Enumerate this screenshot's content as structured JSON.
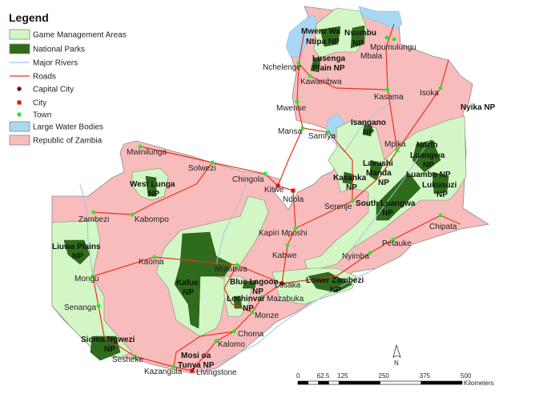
{
  "legend": {
    "title": "Legend",
    "items": [
      {
        "label": "Game Management Areas",
        "symbol": "fill",
        "color": "#d2f7c4"
      },
      {
        "label": "National Parks",
        "symbol": "fill",
        "color": "#2e6b1a"
      },
      {
        "label": "Major Rivers",
        "symbol": "line",
        "color": "#9fc3e6"
      },
      {
        "label": "Roads",
        "symbol": "line",
        "color": "#e8341c"
      },
      {
        "label": "Capital City",
        "symbol": "circle",
        "color": "#6b0f0f"
      },
      {
        "label": "City",
        "symbol": "square",
        "color": "#e01010"
      },
      {
        "label": "Town",
        "symbol": "circle",
        "color": "#2ee62e"
      },
      {
        "label": "Large Water Bodies",
        "symbol": "fill",
        "color": "#a8d8f5"
      },
      {
        "label": "Republic of Zambia",
        "symbol": "fill",
        "color": "#f9bcbc"
      }
    ]
  },
  "places": [
    {
      "name": "Mpumulungu",
      "type": "town"
    },
    {
      "name": "Mbala",
      "type": "town"
    },
    {
      "name": "Nchelenge",
      "type": "town"
    },
    {
      "name": "Kawambwa",
      "type": "town"
    },
    {
      "name": "Kasama",
      "type": "town"
    },
    {
      "name": "Isoka",
      "type": "town"
    },
    {
      "name": "Mwense",
      "type": "town"
    },
    {
      "name": "Mansa",
      "type": "town"
    },
    {
      "name": "Samfya",
      "type": "town"
    },
    {
      "name": "Mpika",
      "type": "town"
    },
    {
      "name": "Serenje",
      "type": "town"
    },
    {
      "name": "Chipata",
      "type": "town"
    },
    {
      "name": "Petauke",
      "type": "town"
    },
    {
      "name": "Nyimba",
      "type": "town"
    },
    {
      "name": "Kabwe",
      "type": "town"
    },
    {
      "name": "Kapiri Mposhi",
      "type": "town"
    },
    {
      "name": "Ndola",
      "type": "city"
    },
    {
      "name": "Kitwe",
      "type": "city"
    },
    {
      "name": "Chingola",
      "type": "town"
    },
    {
      "name": "Solwezi",
      "type": "town"
    },
    {
      "name": "Mwinilunga",
      "type": "town"
    },
    {
      "name": "Zambezi",
      "type": "town"
    },
    {
      "name": "Kabompo",
      "type": "town"
    },
    {
      "name": "Kaoma",
      "type": "town"
    },
    {
      "name": "Mongu",
      "type": "town"
    },
    {
      "name": "Senanga",
      "type": "town"
    },
    {
      "name": "Sesheke",
      "type": "town"
    },
    {
      "name": "Kazangula",
      "type": "town"
    },
    {
      "name": "Livingstone",
      "type": "city"
    },
    {
      "name": "Kalomo",
      "type": "town"
    },
    {
      "name": "Choma",
      "type": "town"
    },
    {
      "name": "Monze",
      "type": "town"
    },
    {
      "name": "Mazabuka",
      "type": "town"
    },
    {
      "name": "Lusaka",
      "type": "capital"
    },
    {
      "name": "Mumbwa",
      "type": "town"
    }
  ],
  "parks": [
    {
      "lines": [
        "Mweru Wa",
        "Ntipa NP"
      ]
    },
    {
      "lines": [
        "Nsumbu",
        "NP"
      ]
    },
    {
      "lines": [
        "Lusenga",
        "Plain NP"
      ]
    },
    {
      "lines": [
        "Isangano",
        "NP"
      ]
    },
    {
      "lines": [
        "Nyika NP"
      ]
    },
    {
      "lines": [
        "North",
        "Luangwa",
        "NP"
      ]
    },
    {
      "lines": [
        "Lavushi",
        "Manda",
        "NP"
      ]
    },
    {
      "lines": [
        "Kasanka",
        "NP"
      ]
    },
    {
      "lines": [
        "Luambo NP"
      ]
    },
    {
      "lines": [
        "Lukusuzi",
        "NP"
      ]
    },
    {
      "lines": [
        "South Luangwa",
        "NP"
      ]
    },
    {
      "lines": [
        "West Lunga",
        "NP"
      ]
    },
    {
      "lines": [
        "Liuwa Plains",
        "NP"
      ]
    },
    {
      "lines": [
        "Kafue",
        "NP"
      ]
    },
    {
      "lines": [
        "Blue Lagoon",
        "NP"
      ]
    },
    {
      "lines": [
        "Lochinvar",
        "NP"
      ]
    },
    {
      "lines": [
        "Lower Zambezi",
        "NP"
      ]
    },
    {
      "lines": [
        "Sioma Ngwezi",
        "NP"
      ]
    },
    {
      "lines": [
        "Mosi oa",
        "Tunya NP"
      ]
    }
  ],
  "scale_bar": {
    "ticks": [
      "0",
      "62.5",
      "125",
      "250",
      "375",
      "500"
    ],
    "unit": "Kilometers"
  },
  "north_arrow": {
    "label": "N"
  }
}
